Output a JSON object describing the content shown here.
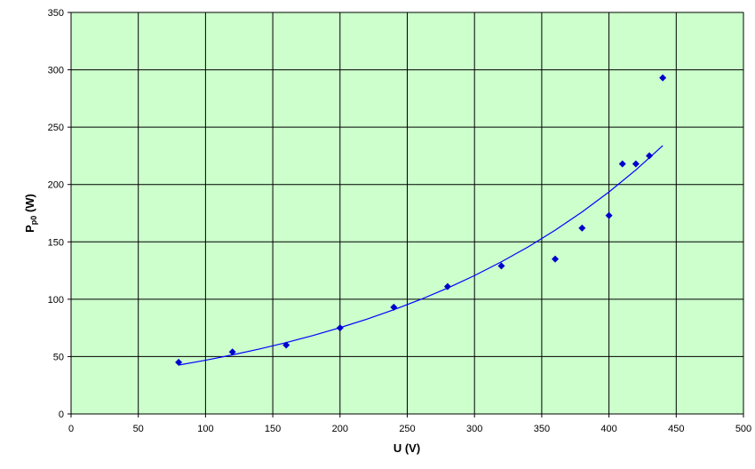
{
  "chart_data": {
    "type": "scatter",
    "xlabel": "U (V)",
    "ylabel": [
      "P",
      "p0",
      " (W)"
    ],
    "x": [
      80,
      120,
      160,
      200,
      240,
      280,
      320,
      360,
      380,
      400,
      410,
      420,
      430,
      440
    ],
    "series": [
      {
        "color": "#0000cc",
        "values": [
          45,
          54,
          60,
          75,
          93,
          111,
          129,
          135,
          162,
          173,
          218,
          218,
          225,
          293
        ]
      }
    ],
    "trendline": {
      "color": "#0000ff",
      "x": [
        80,
        100,
        120,
        140,
        160,
        180,
        200,
        220,
        240,
        260,
        280,
        300,
        320,
        340,
        360,
        380,
        400,
        420,
        440
      ],
      "values": [
        42.6,
        46.8,
        51.5,
        56.6,
        62.2,
        68.4,
        75.2,
        82.6,
        90.8,
        99.8,
        109.7,
        120.6,
        132.6,
        145.7,
        160.2,
        176.1,
        193.5,
        212.7,
        233.9
      ]
    },
    "xlim": [
      0,
      500
    ],
    "xticks": [
      0,
      50,
      100,
      150,
      200,
      250,
      300,
      350,
      400,
      450,
      500
    ],
    "ylim": [
      0,
      350
    ],
    "yticks": [
      0,
      50,
      100,
      150,
      200,
      250,
      300,
      350
    ],
    "grid": true,
    "plot_background": "#ccffcc"
  }
}
